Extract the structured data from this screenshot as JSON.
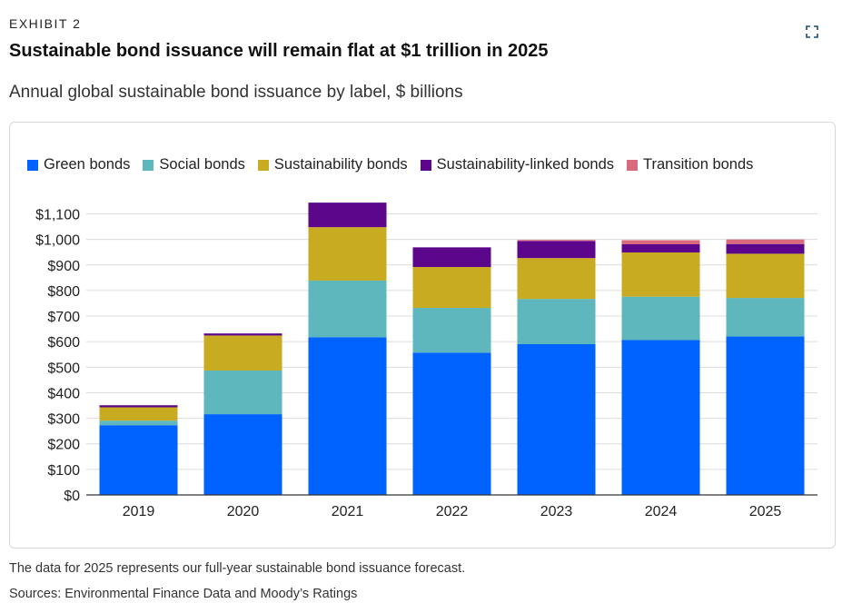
{
  "header": {
    "exhibit": "EXHIBIT 2",
    "title": "Sustainable bond issuance will remain flat at $1 trillion in 2025",
    "subtitle": "Annual global sustainable bond issuance by label, $ billions"
  },
  "icons": {
    "expand": "expand-icon"
  },
  "footer": {
    "note": "The data for 2025 represents our full-year sustainable bond issuance forecast.",
    "sources": "Sources: Environmental Finance Data and Moody’s Ratings"
  },
  "chart_data": {
    "type": "bar",
    "stacked": true,
    "categories": [
      "2019",
      "2020",
      "2021",
      "2022",
      "2023",
      "2024",
      "2025"
    ],
    "series": [
      {
        "name": "Green bonds",
        "color": "#0062ff",
        "values": [
          273,
          316,
          617,
          557,
          590,
          606,
          620
        ]
      },
      {
        "name": "Social bonds",
        "color": "#5db7bd",
        "values": [
          18,
          171,
          222,
          175,
          177,
          170,
          151
        ]
      },
      {
        "name": "Sustainability bonds",
        "color": "#c8ab20",
        "values": [
          52,
          137,
          209,
          160,
          160,
          173,
          173
        ]
      },
      {
        "name": "Sustainability-linked bonds",
        "color": "#5c068c",
        "values": [
          8,
          8,
          96,
          77,
          67,
          32,
          38
        ]
      },
      {
        "name": "Transition bonds",
        "color": "#d96a7e",
        "values": [
          0,
          0,
          0,
          0,
          4,
          16,
          18
        ]
      }
    ],
    "yticks": [
      "$0",
      "$100",
      "$200",
      "$300",
      "$400",
      "$500",
      "$600",
      "$700",
      "$800",
      "$900",
      "$1,000",
      "$1,100"
    ],
    "ylim": [
      0,
      1100
    ],
    "grid": true,
    "legend": "top-left",
    "title": "Sustainable bond issuance will remain flat at $1 trillion in 2025",
    "subtitle": "Annual global sustainable bond issuance by label, $ billions",
    "xlabel": "",
    "ylabel": ""
  }
}
